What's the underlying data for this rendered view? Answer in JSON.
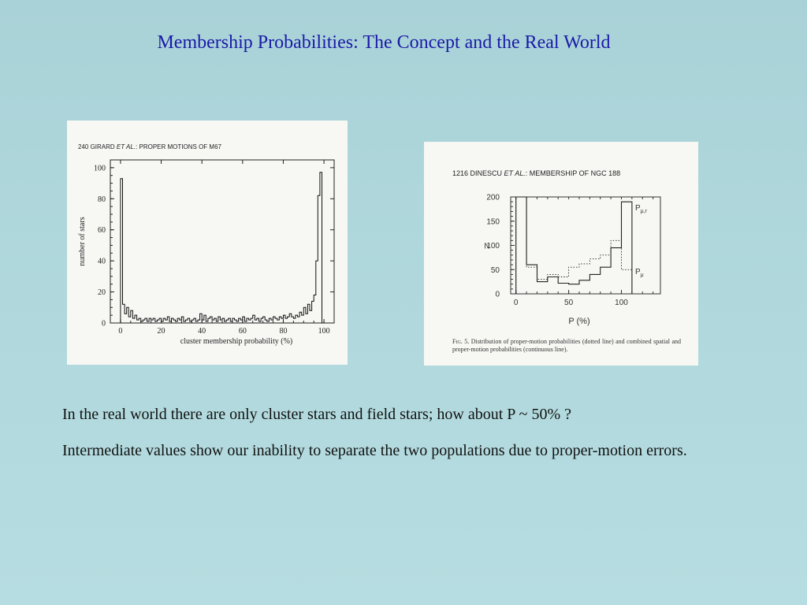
{
  "slide": {
    "title": "Membership Probabilities: The Concept and the Real World",
    "paragraphs": [
      "In the real world there are only cluster stars and field stars; how about P ~ 50% ?",
      "Intermediate values show our inability to separate the two populations due to proper-motion errors."
    ]
  },
  "chart_data": [
    {
      "type": "bar",
      "style": "step-histogram",
      "page_number": "240",
      "header_pre": "GIRARD ",
      "header_em": "ET AL.",
      "header_post": ": PROPER MOTIONS OF M67",
      "xlabel": "cluster membership probability  (%)",
      "ylabel": "number of stars",
      "xlim": [
        -5,
        105
      ],
      "ylim": [
        0,
        105
      ],
      "x_ticks": [
        "0",
        "20",
        "40",
        "60",
        "80",
        "100"
      ],
      "y_ticks": [
        "0",
        "20",
        "40",
        "60",
        "80",
        "100"
      ],
      "bin_width": 1,
      "x_start": 0,
      "values": [
        93,
        12,
        6,
        10,
        4,
        8,
        3,
        5,
        2,
        3,
        1,
        2,
        3,
        1,
        3,
        2,
        3,
        1,
        2,
        3,
        1,
        3,
        2,
        4,
        1,
        3,
        2,
        1,
        3,
        2,
        4,
        1,
        2,
        3,
        1,
        2,
        3,
        1,
        2,
        6,
        2,
        5,
        1,
        3,
        4,
        2,
        3,
        1,
        4,
        2,
        3,
        1,
        2,
        3,
        1,
        3,
        2,
        1,
        3,
        2,
        4,
        1,
        3,
        2,
        3,
        5,
        2,
        3,
        1,
        3,
        4,
        2,
        1,
        3,
        2,
        4,
        3,
        2,
        4,
        3,
        5,
        3,
        4,
        6,
        4,
        3,
        5,
        4,
        7,
        5,
        10,
        6,
        12,
        8,
        14,
        18,
        40,
        82,
        97,
        0
      ]
    },
    {
      "type": "bar",
      "style": "step-histogram",
      "page_number": "1216",
      "header_pre": "DINESCU ",
      "header_em": "ET AL.",
      "header_post": ": MEMBERSHIP OF NGC 188",
      "xlabel": "P  (%)",
      "ylabel": "N",
      "xlim": [
        -5,
        137
      ],
      "ylim": [
        0,
        200
      ],
      "x_ticks": [
        "0",
        "50",
        "100"
      ],
      "y_ticks": [
        "0",
        "50",
        "100",
        "150",
        "200"
      ],
      "bin_width": 10,
      "x_start": 0,
      "series": [
        {
          "name": "P<sub>μ,r</sub>",
          "label_main": "P",
          "label_sub": "μ,r",
          "dash": "solid",
          "values": [
            200,
            60,
            25,
            35,
            22,
            20,
            28,
            40,
            55,
            95,
            190
          ]
        },
        {
          "name": "P<sub>μ</sub>",
          "label_main": "P",
          "label_sub": "μ",
          "dash": "dotted",
          "values": [
            200,
            55,
            30,
            40,
            35,
            55,
            62,
            72,
            80,
            110,
            50
          ]
        }
      ],
      "caption_lead": "Fig. 5.",
      "caption": "Distribution of proper-motion probabilities (dotted line) and combined spatial and proper-motion probabilities (continuous line)."
    }
  ]
}
